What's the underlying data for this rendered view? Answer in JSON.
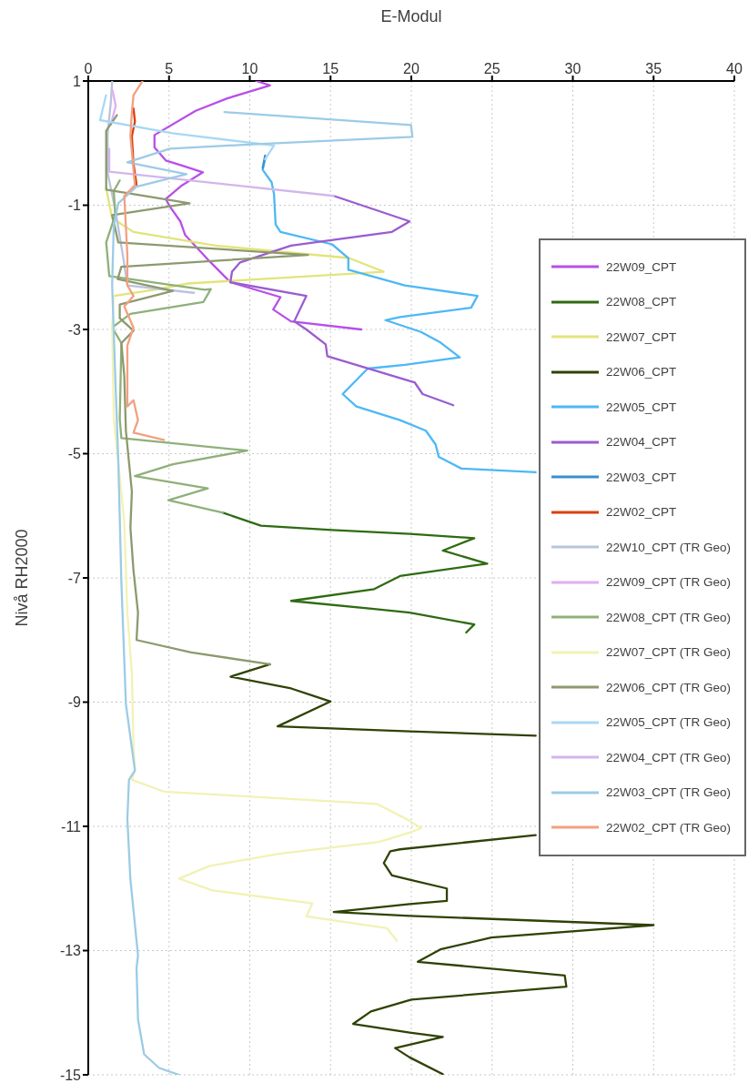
{
  "chart_data": {
    "type": "line",
    "xlabel": "E-Modul",
    "ylabel": "Nivå RH2000",
    "xlim": [
      0,
      40
    ],
    "xticks": [
      0,
      5,
      10,
      15,
      20,
      25,
      30,
      35,
      40
    ],
    "ylim": [
      -15,
      1
    ],
    "yticks": [
      1,
      -1,
      -3,
      -5,
      -7,
      -9,
      -11,
      -13,
      -15
    ],
    "grid": true,
    "legend": "right",
    "series": [
      {
        "name": "22W09_CPT",
        "color": "#b84fe8",
        "x": [
          10.4,
          11.25,
          8.6,
          6.65,
          4.1,
          4.1,
          4.8,
          5.8,
          7.1,
          5.8,
          4.8,
          5.05,
          5.7,
          6.0,
          7.5,
          8.8,
          11.9,
          11.45,
          12.55,
          16.9
        ],
        "values": [
          1.0,
          0.93,
          0.72,
          0.52,
          0.13,
          -0.07,
          -0.28,
          -0.36,
          -0.47,
          -0.68,
          -0.9,
          -1.02,
          -1.26,
          -1.48,
          -1.9,
          -2.24,
          -2.48,
          -2.68,
          -2.87,
          -3.0
        ]
      },
      {
        "name": "22W08_CPT",
        "color": "#2e6b12",
        "x": [
          8.34,
          10.69,
          15.1,
          19.9,
          23.9,
          21.95,
          24.7,
          19.3,
          17.7,
          12.56,
          17.7,
          19.9,
          23.9,
          23.4
        ],
        "values": [
          -5.95,
          -6.16,
          -6.23,
          -6.29,
          -6.36,
          -6.56,
          -6.77,
          -6.97,
          -7.18,
          -7.37,
          -7.5,
          -7.56,
          -7.75,
          -7.88
        ]
      },
      {
        "name": "22W07_CPT",
        "color": "#e2e47a",
        "x": [
          1.11,
          1.48,
          2.8,
          7.87,
          16.13,
          18.29,
          6.18,
          4.11,
          1.58
        ],
        "values": [
          -0.73,
          -1.21,
          -1.43,
          -1.65,
          -1.85,
          -2.07,
          -2.26,
          -2.36,
          -2.46
        ]
      },
      {
        "name": "22W06_CPT",
        "color": "#2f4205",
        "x": [
          11.25,
          8.81,
          12.56,
          15.0,
          11.72,
          19.9,
          27.7,
          null,
          27.7,
          23.3,
          19.3,
          18.7,
          18.3,
          18.8,
          19.9,
          22.2,
          22.2,
          19.9,
          15.2,
          19.9,
          35.0,
          24.96,
          21.8,
          20.4,
          29.5,
          29.6,
          20.0,
          17.5,
          16.4,
          19.9,
          21.95,
          19.0,
          19.9,
          21.95
        ],
        "values": [
          -8.39,
          -8.59,
          -8.78,
          -8.99,
          -9.39,
          -9.47,
          -9.54,
          null,
          -11.14,
          -11.26,
          -11.37,
          -11.4,
          -11.59,
          -11.79,
          -11.86,
          -12.0,
          -12.2,
          -12.25,
          -12.38,
          -12.44,
          -12.59,
          -12.79,
          -12.98,
          -13.18,
          -13.4,
          -13.58,
          -13.79,
          -13.98,
          -14.18,
          -14.32,
          -14.39,
          -14.57,
          -14.72,
          -14.99
        ]
      },
      {
        "name": "22W05_CPT",
        "color": "#4db8f5",
        "x": [
          10.95,
          10.8,
          11.35,
          11.5,
          11.6,
          11.9,
          15.1,
          16.1,
          16.1,
          19.6,
          24.1,
          23.7,
          19.3,
          18.4,
          20.6,
          21.8,
          23.0,
          19.6,
          17.3,
          15.75,
          16.6,
          19.3,
          20.9,
          21.5,
          21.7,
          23.1,
          27.7
        ],
        "values": [
          -0.26,
          -0.43,
          -0.63,
          -0.82,
          -1.31,
          -1.43,
          -1.63,
          -1.85,
          -2.04,
          -2.29,
          -2.46,
          -2.65,
          -2.8,
          -2.85,
          -3.04,
          -3.21,
          -3.45,
          -3.57,
          -3.63,
          -4.04,
          -4.24,
          -4.46,
          -4.63,
          -4.85,
          -5.05,
          -5.24,
          -5.3
        ]
      },
      {
        "name": "22W04_CPT",
        "color": "#9a5cd0",
        "x": [
          15.2,
          19.9,
          18.8,
          12.55,
          9.4,
          8.9,
          8.8,
          13.5,
          12.75,
          13.5,
          14.7,
          14.8,
          19.9,
          20.2,
          20.7,
          22.6
        ],
        "values": [
          -0.85,
          -1.26,
          -1.43,
          -1.65,
          -1.92,
          -2.07,
          -2.24,
          -2.46,
          -2.87,
          -3.0,
          -3.24,
          -3.43,
          -3.83,
          -3.85,
          -4.04,
          -4.22
        ]
      },
      {
        "name": "22W03_CPT",
        "color": "#3a8fd0",
        "x": [
          10.95,
          10.8
        ],
        "values": [
          -0.2,
          -0.4
        ]
      },
      {
        "name": "22W02_CPT",
        "color": "#d9400f",
        "x": [
          2.8,
          2.89,
          2.7,
          2.8,
          2.99
        ],
        "values": [
          0.56,
          0.35,
          0.11,
          -0.33,
          -0.67
        ]
      },
      {
        "name": "22W10_CPT (TR Geo)",
        "color": "#b9c3dc",
        "x": [
          1.48,
          1.39,
          1.2,
          1.2,
          1.67,
          2.14,
          2.42,
          6.55
        ],
        "values": [
          0.99,
          0.64,
          0.16,
          -0.48,
          -1.07,
          -1.8,
          -2.29,
          -2.41
        ]
      },
      {
        "name": "22W09_CPT (TR Geo)",
        "color": "#e0adf5",
        "x": [
          1.5,
          1.7,
          1.4
        ],
        "values": [
          0.85,
          0.6,
          0.3
        ]
      },
      {
        "name": "22W08_CPT (TR Geo)",
        "color": "#8fb07a",
        "x": [
          1.95,
          1.58,
          1.67,
          1.11,
          1.3,
          7.21,
          7.59,
          7.12,
          2.61,
          1.48,
          2.05,
          1.95,
          2.05,
          9.84,
          5.24,
          2.89,
          7.4,
          4.96,
          8.34
        ],
        "values": [
          -0.6,
          -0.77,
          -1.16,
          -1.6,
          -2.14,
          -2.36,
          -2.35,
          -2.56,
          -2.75,
          -2.97,
          -3.22,
          -4.44,
          -4.75,
          -4.95,
          -5.17,
          -5.36,
          -5.56,
          -5.75,
          -5.95
        ]
      },
      {
        "name": "22W07_CPT (TR Geo)",
        "color": "#f2f2b5",
        "x": [
          1.58,
          1.48,
          1.58,
          2.23,
          2.42,
          2.7,
          2.8,
          2.89,
          2.7,
          4.68,
          17.9,
          19.9,
          20.6,
          19.9,
          18.0,
          11.8,
          7.49,
          5.62,
          7.68,
          13.88,
          13.5,
          18.5,
          19.1
        ],
        "values": [
          -2.46,
          -2.97,
          -4.44,
          -6.1,
          -7.56,
          -8.54,
          -9.71,
          -10.1,
          -10.25,
          -10.44,
          -10.64,
          -10.91,
          -11.03,
          -11.1,
          -11.25,
          -11.44,
          -11.64,
          -11.84,
          -12.03,
          -12.24,
          -12.45,
          -12.64,
          -12.84
        ]
      },
      {
        "name": "22W06_CPT (TR Geo)",
        "color": "#8c9a6e",
        "x": [
          1.77,
          1.11,
          1.11,
          6.27,
          1.48,
          1.86,
          13.6,
          2.05,
          1.82,
          5.24,
          1.95,
          1.95,
          2.8,
          2.05,
          2.23,
          2.33,
          2.7,
          2.61,
          2.8,
          3.08,
          2.99,
          6.37,
          11.25
        ],
        "values": [
          0.45,
          0.2,
          -0.75,
          -0.97,
          -1.16,
          -1.6,
          -1.8,
          -1.99,
          -2.19,
          -2.38,
          -2.6,
          -2.82,
          -3.02,
          -3.22,
          -3.75,
          -4.63,
          -5.61,
          -6.19,
          -6.88,
          -7.56,
          -8.0,
          -8.2,
          -8.39
        ]
      },
      {
        "name": "22W05_CPT (TR Geo)",
        "color": "#a8d8f5",
        "x": [
          1.1,
          0.73,
          5.2,
          11.5,
          10.95
        ],
        "values": [
          0.77,
          0.37,
          0.16,
          -0.04,
          -0.26
        ]
      },
      {
        "name": "22W04_CPT (TR Geo)",
        "color": "#d4b5ea",
        "x": [
          1.3,
          1.3,
          15.2
        ],
        "values": [
          -0.09,
          -0.46,
          -0.85
        ]
      },
      {
        "name": "22W03_CPT (TR Geo)",
        "color": "#9ccbe6",
        "x": [
          8.43,
          19.98,
          20.07,
          10.12,
          5.05,
          2.42,
          6.08,
          2.99,
          1.86,
          1.58,
          1.48,
          1.67,
          1.86,
          2.05,
          2.33,
          2.89,
          2.52,
          2.42,
          2.61,
          3.08,
          2.99,
          3.08,
          3.46,
          4.39,
          5.62
        ],
        "values": [
          0.5,
          0.29,
          0.1,
          -0.02,
          -0.09,
          -0.31,
          -0.5,
          -0.7,
          -0.97,
          -1.31,
          -2.29,
          -3.75,
          -5.12,
          -7.07,
          -9.03,
          -10.1,
          -10.25,
          -10.88,
          -11.86,
          -13.08,
          -13.28,
          -14.11,
          -14.67,
          -14.89,
          -15.0
        ]
      },
      {
        "name": "22W02_CPT (TR Geo)",
        "color": "#f2a080",
        "x": [
          3.36,
          2.8,
          2.7,
          2.61,
          2.89,
          2.23,
          2.42,
          2.42,
          2.8,
          2.23,
          2.8,
          2.42,
          2.42,
          2.8,
          3.08,
          2.8,
          4.68
        ],
        "values": [
          1.0,
          0.77,
          0.5,
          0.11,
          -0.68,
          -0.85,
          -1.8,
          -2.29,
          -2.46,
          -2.63,
          -2.97,
          -3.26,
          -4.24,
          -4.14,
          -4.46,
          -4.66,
          -4.78
        ]
      }
    ]
  }
}
